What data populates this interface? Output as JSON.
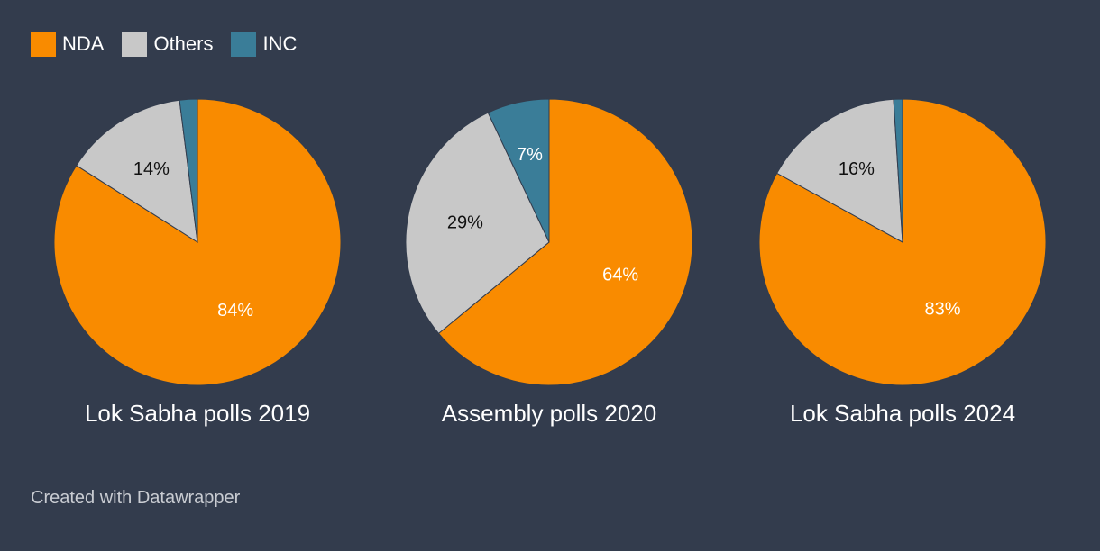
{
  "colors": {
    "background": "#333c4d",
    "NDA": "#f98b00",
    "Others": "#c8c8c8",
    "INC": "#3a7d98"
  },
  "legend": [
    {
      "label": "NDA",
      "color": "#f98b00"
    },
    {
      "label": "Others",
      "color": "#c8c8c8"
    },
    {
      "label": "INC",
      "color": "#3a7d98"
    }
  ],
  "chart_data": [
    {
      "type": "pie",
      "title": "Lok Sabha polls 2019",
      "slices": [
        {
          "name": "NDA",
          "value": 84,
          "label": "84%"
        },
        {
          "name": "Others",
          "value": 14,
          "label": "14%"
        },
        {
          "name": "INC",
          "value": 2,
          "label": ""
        }
      ]
    },
    {
      "type": "pie",
      "title": "Assembly polls 2020",
      "slices": [
        {
          "name": "NDA",
          "value": 64,
          "label": "64%"
        },
        {
          "name": "Others",
          "value": 29,
          "label": "29%"
        },
        {
          "name": "INC",
          "value": 7,
          "label": "7%"
        }
      ]
    },
    {
      "type": "pie",
      "title": "Lok Sabha polls 2024",
      "slices": [
        {
          "name": "NDA",
          "value": 83,
          "label": "83%"
        },
        {
          "name": "Others",
          "value": 16,
          "label": "16%"
        },
        {
          "name": "INC",
          "value": 1,
          "label": ""
        }
      ]
    }
  ],
  "footer": {
    "credit": "Created with Datawrapper"
  }
}
